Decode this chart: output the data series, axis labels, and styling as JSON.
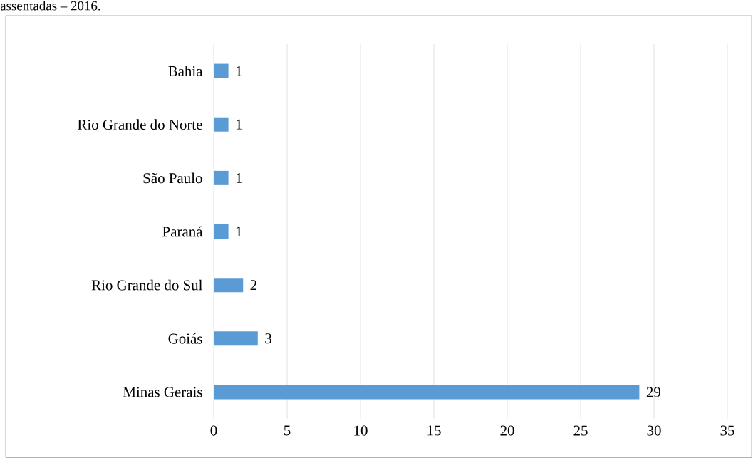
{
  "chart_data": {
    "type": "bar",
    "orientation": "horizontal",
    "title": "assentadas – 2016.",
    "categories": [
      "Bahia",
      "Rio Grande do Norte",
      "São Paulo",
      "Paraná",
      "Rio Grande do Sul",
      "Goiás",
      "Minas Gerais"
    ],
    "values": [
      1,
      1,
      1,
      1,
      2,
      3,
      29
    ],
    "color": "#5b9bd5",
    "xlim": [
      0,
      35
    ],
    "xticks": [
      0,
      5,
      10,
      15,
      20,
      25,
      30,
      35
    ],
    "grid": "x",
    "data_labels": true
  }
}
